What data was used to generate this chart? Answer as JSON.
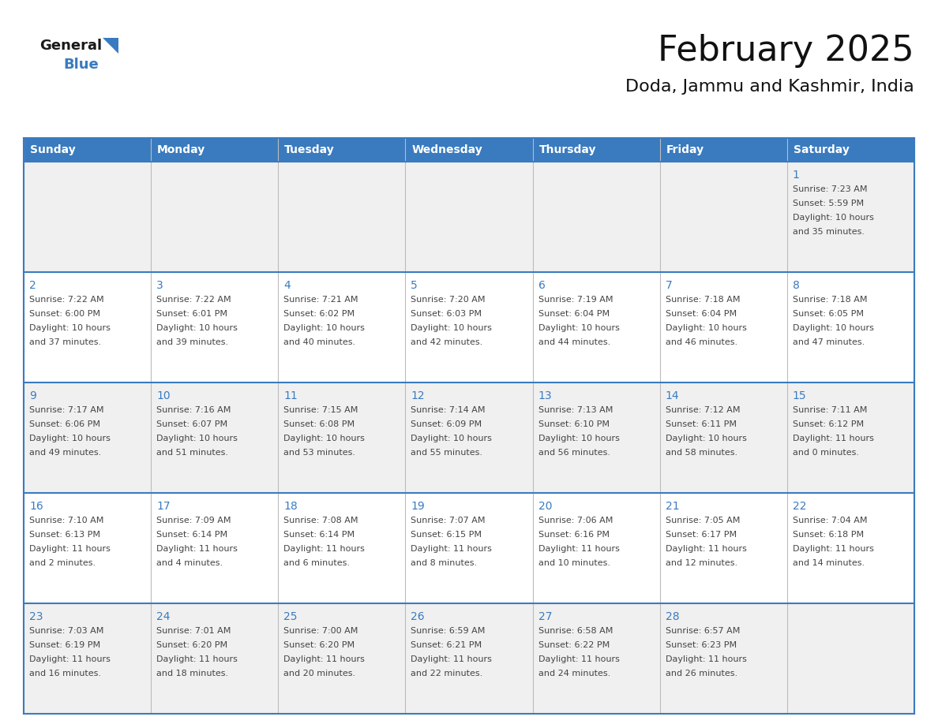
{
  "title": "February 2025",
  "subtitle": "Doda, Jammu and Kashmir, India",
  "header_bg": "#3a7bbf",
  "header_text_color": "#ffffff",
  "days_of_week": [
    "Sunday",
    "Monday",
    "Tuesday",
    "Wednesday",
    "Thursday",
    "Friday",
    "Saturday"
  ],
  "bg_color": "#ffffff",
  "row_odd_color": "#f0f0f0",
  "row_even_color": "#ffffff",
  "border_color": "#3a7bbf",
  "day_number_color": "#3a7bbf",
  "text_color": "#444444",
  "calendar_data": [
    [
      null,
      null,
      null,
      null,
      null,
      null,
      {
        "day": 1,
        "sunrise": "7:23 AM",
        "sunset": "5:59 PM",
        "daylight": "10 hours and 35 minutes."
      }
    ],
    [
      {
        "day": 2,
        "sunrise": "7:22 AM",
        "sunset": "6:00 PM",
        "daylight": "10 hours and 37 minutes."
      },
      {
        "day": 3,
        "sunrise": "7:22 AM",
        "sunset": "6:01 PM",
        "daylight": "10 hours and 39 minutes."
      },
      {
        "day": 4,
        "sunrise": "7:21 AM",
        "sunset": "6:02 PM",
        "daylight": "10 hours and 40 minutes."
      },
      {
        "day": 5,
        "sunrise": "7:20 AM",
        "sunset": "6:03 PM",
        "daylight": "10 hours and 42 minutes."
      },
      {
        "day": 6,
        "sunrise": "7:19 AM",
        "sunset": "6:04 PM",
        "daylight": "10 hours and 44 minutes."
      },
      {
        "day": 7,
        "sunrise": "7:18 AM",
        "sunset": "6:04 PM",
        "daylight": "10 hours and 46 minutes."
      },
      {
        "day": 8,
        "sunrise": "7:18 AM",
        "sunset": "6:05 PM",
        "daylight": "10 hours and 47 minutes."
      }
    ],
    [
      {
        "day": 9,
        "sunrise": "7:17 AM",
        "sunset": "6:06 PM",
        "daylight": "10 hours and 49 minutes."
      },
      {
        "day": 10,
        "sunrise": "7:16 AM",
        "sunset": "6:07 PM",
        "daylight": "10 hours and 51 minutes."
      },
      {
        "day": 11,
        "sunrise": "7:15 AM",
        "sunset": "6:08 PM",
        "daylight": "10 hours and 53 minutes."
      },
      {
        "day": 12,
        "sunrise": "7:14 AM",
        "sunset": "6:09 PM",
        "daylight": "10 hours and 55 minutes."
      },
      {
        "day": 13,
        "sunrise": "7:13 AM",
        "sunset": "6:10 PM",
        "daylight": "10 hours and 56 minutes."
      },
      {
        "day": 14,
        "sunrise": "7:12 AM",
        "sunset": "6:11 PM",
        "daylight": "10 hours and 58 minutes."
      },
      {
        "day": 15,
        "sunrise": "7:11 AM",
        "sunset": "6:12 PM",
        "daylight": "11 hours and 0 minutes."
      }
    ],
    [
      {
        "day": 16,
        "sunrise": "7:10 AM",
        "sunset": "6:13 PM",
        "daylight": "11 hours and 2 minutes."
      },
      {
        "day": 17,
        "sunrise": "7:09 AM",
        "sunset": "6:14 PM",
        "daylight": "11 hours and 4 minutes."
      },
      {
        "day": 18,
        "sunrise": "7:08 AM",
        "sunset": "6:14 PM",
        "daylight": "11 hours and 6 minutes."
      },
      {
        "day": 19,
        "sunrise": "7:07 AM",
        "sunset": "6:15 PM",
        "daylight": "11 hours and 8 minutes."
      },
      {
        "day": 20,
        "sunrise": "7:06 AM",
        "sunset": "6:16 PM",
        "daylight": "11 hours and 10 minutes."
      },
      {
        "day": 21,
        "sunrise": "7:05 AM",
        "sunset": "6:17 PM",
        "daylight": "11 hours and 12 minutes."
      },
      {
        "day": 22,
        "sunrise": "7:04 AM",
        "sunset": "6:18 PM",
        "daylight": "11 hours and 14 minutes."
      }
    ],
    [
      {
        "day": 23,
        "sunrise": "7:03 AM",
        "sunset": "6:19 PM",
        "daylight": "11 hours and 16 minutes."
      },
      {
        "day": 24,
        "sunrise": "7:01 AM",
        "sunset": "6:20 PM",
        "daylight": "11 hours and 18 minutes."
      },
      {
        "day": 25,
        "sunrise": "7:00 AM",
        "sunset": "6:20 PM",
        "daylight": "11 hours and 20 minutes."
      },
      {
        "day": 26,
        "sunrise": "6:59 AM",
        "sunset": "6:21 PM",
        "daylight": "11 hours and 22 minutes."
      },
      {
        "day": 27,
        "sunrise": "6:58 AM",
        "sunset": "6:22 PM",
        "daylight": "11 hours and 24 minutes."
      },
      {
        "day": 28,
        "sunrise": "6:57 AM",
        "sunset": "6:23 PM",
        "daylight": "11 hours and 26 minutes."
      },
      null
    ]
  ],
  "logo_general_color": "#1a1a1a",
  "logo_blue_color": "#3a7bbf",
  "logo_triangle_color": "#3a7bbf"
}
